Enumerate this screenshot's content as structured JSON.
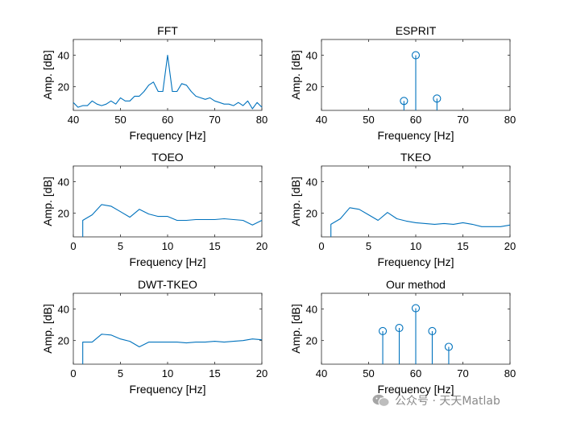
{
  "chart_data": [
    {
      "type": "line",
      "title": "FFT",
      "xlabel": "Frequency [Hz]",
      "ylabel": "Amp. [dB]",
      "xlim": [
        40,
        80
      ],
      "ylim": [
        5,
        50
      ],
      "xticks": [
        40,
        50,
        60,
        70,
        80
      ],
      "yticks": [
        20,
        40
      ],
      "series": [
        {
          "x": [
            40,
            41,
            42,
            43,
            44,
            45,
            46,
            47,
            48,
            49,
            50,
            51,
            52,
            53,
            54,
            55,
            56,
            57,
            58,
            59,
            60,
            61,
            62,
            63,
            64,
            65,
            66,
            67,
            68,
            69,
            70,
            71,
            72,
            73,
            74,
            75,
            76,
            77,
            78,
            79,
            80
          ],
          "y": [
            10,
            7,
            8,
            8,
            11,
            9,
            8,
            9,
            11,
            9,
            13,
            11,
            11,
            14,
            14,
            17,
            21,
            23,
            17,
            17,
            40,
            17,
            17,
            22,
            21,
            17,
            14,
            13,
            12,
            13,
            11,
            10,
            9,
            9,
            8,
            10,
            8,
            11,
            6,
            10,
            7
          ]
        }
      ]
    },
    {
      "type": "stem",
      "title": "ESPRIT",
      "xlabel": "Frequency [Hz]",
      "ylabel": "Amp. [dB]",
      "xlim": [
        40,
        80
      ],
      "ylim": [
        5,
        50
      ],
      "xticks": [
        40,
        50,
        60,
        70,
        80
      ],
      "yticks": [
        20,
        40
      ],
      "series": [
        {
          "x": [
            57.5,
            60,
            64.5
          ],
          "y": [
            11,
            40,
            12.5
          ]
        }
      ]
    },
    {
      "type": "line",
      "title": "TOEO",
      "xlabel": "Frequency [Hz]",
      "ylabel": "Amp. [dB]",
      "xlim": [
        0,
        20
      ],
      "ylim": [
        5,
        50
      ],
      "xticks": [
        0,
        5,
        10,
        15,
        20
      ],
      "yticks": [
        20,
        40
      ],
      "series": [
        {
          "x": [
            1,
            1,
            2,
            3,
            4,
            5,
            6,
            7,
            8,
            9,
            10,
            11,
            12,
            13,
            14,
            15,
            16,
            17,
            18,
            19,
            20
          ],
          "y": [
            5,
            15.5,
            19,
            25.5,
            24.5,
            21,
            17.5,
            22.5,
            19.5,
            18,
            18,
            15.5,
            15.5,
            16,
            16,
            16,
            16.5,
            16,
            15.5,
            12.5,
            15.5
          ]
        }
      ]
    },
    {
      "type": "line",
      "title": "TKEO",
      "xlabel": "Frequency [Hz]",
      "ylabel": "Amp. [dB]",
      "xlim": [
        0,
        20
      ],
      "ylim": [
        5,
        50
      ],
      "xticks": [
        0,
        5,
        10,
        15,
        20
      ],
      "yticks": [
        20,
        40
      ],
      "series": [
        {
          "x": [
            1,
            1,
            2,
            3,
            4,
            5,
            6,
            7,
            8,
            9,
            10,
            11,
            12,
            13,
            14,
            15,
            16,
            17,
            18,
            19,
            20
          ],
          "y": [
            5,
            13,
            16.5,
            23.5,
            22.5,
            19,
            15.5,
            20.5,
            16.5,
            15,
            14,
            13.5,
            13,
            13.5,
            13,
            14,
            13,
            11.5,
            11.5,
            11.5,
            12.5
          ]
        }
      ]
    },
    {
      "type": "line",
      "title": "DWT-TKEO",
      "xlabel": "Frequency [Hz]",
      "ylabel": "Amp. [dB]",
      "xlim": [
        0,
        20
      ],
      "ylim": [
        5,
        50
      ],
      "xticks": [
        0,
        5,
        10,
        15,
        20
      ],
      "yticks": [
        20,
        40
      ],
      "series": [
        {
          "x": [
            1,
            1,
            2,
            3,
            4,
            5,
            6,
            7,
            8,
            9,
            10,
            11,
            12,
            13,
            14,
            15,
            16,
            17,
            18,
            19,
            20
          ],
          "y": [
            5,
            19,
            19,
            24,
            23.5,
            21,
            19.5,
            16,
            19,
            19,
            19,
            19,
            18.5,
            19,
            19,
            19.5,
            19,
            19.5,
            20,
            21,
            20.5
          ]
        }
      ]
    },
    {
      "type": "stem",
      "title": "Our method",
      "xlabel": "Frequency [Hz]",
      "ylabel": "Amp. [dB]",
      "xlim": [
        40,
        80
      ],
      "ylim": [
        5,
        50
      ],
      "xticks": [
        40,
        50,
        60,
        70,
        80
      ],
      "yticks": [
        20,
        40
      ],
      "series": [
        {
          "x": [
            53,
            56.5,
            60,
            63.5,
            67
          ],
          "y": [
            26,
            28,
            40.5,
            26,
            16
          ]
        }
      ]
    }
  ],
  "style": {
    "line_color": "#0072BD",
    "axis_color": "#262626",
    "text_color": "#000000"
  },
  "watermark": {
    "text": "公众号 · 天天Matlab",
    "icon": "wechat-icon"
  }
}
